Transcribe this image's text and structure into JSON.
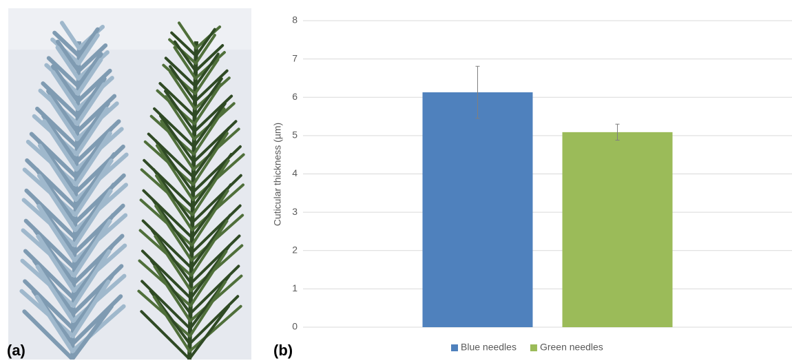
{
  "panel_labels": [
    "(a)",
    "(b)"
  ],
  "chart_data": {
    "type": "bar",
    "ylabel": "Cuticular thickness (µm)",
    "categories": [
      null
    ],
    "series": [
      {
        "name": "Blue needles",
        "color": "#4f81bd",
        "values": [
          6.13
        ],
        "errors": [
          0.68
        ],
        "error_color": "#7f7f7f"
      },
      {
        "name": "Green needles",
        "color": "#9bbb59",
        "values": [
          5.09
        ],
        "errors": [
          0.21
        ],
        "error_color": "#7f7f7f"
      }
    ],
    "ylim": [
      0,
      8
    ],
    "yticks": [
      0,
      1,
      2,
      3,
      4,
      5,
      6,
      7,
      8
    ],
    "grid": true,
    "legend": "bottom"
  }
}
